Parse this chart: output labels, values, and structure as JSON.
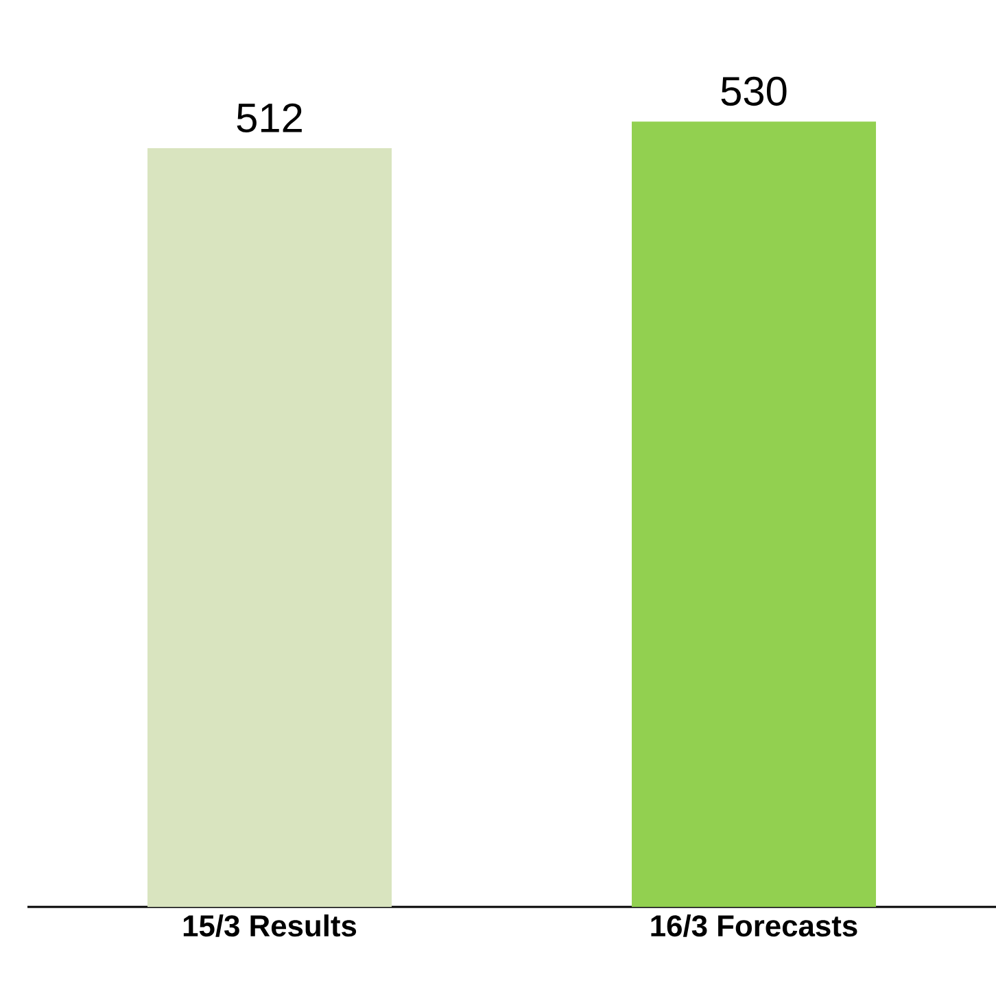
{
  "chart_data": {
    "type": "bar",
    "categories": [
      "15/3  Results",
      "16/3  Forecasts"
    ],
    "values": [
      512,
      530
    ],
    "colors": [
      "#d9e4bf",
      "#92d050"
    ],
    "data_labels": true
  }
}
